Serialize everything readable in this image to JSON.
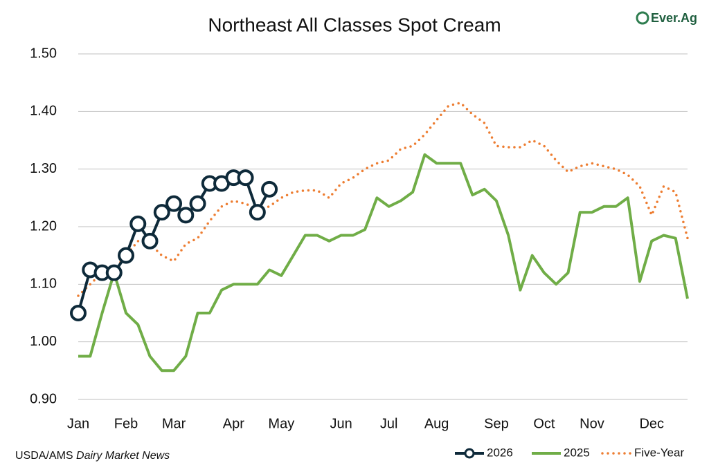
{
  "chart_data": {
    "type": "line",
    "title": "Northeast All Classes Spot Cream",
    "logo": "Ever.Ag",
    "source": {
      "prefix": "USDA/AMS ",
      "italic": "Dairy Market News"
    },
    "categories": [
      "Jan",
      null,
      null,
      null,
      "Feb",
      null,
      null,
      null,
      "Mar",
      null,
      null,
      null,
      null,
      "Apr",
      null,
      null,
      null,
      "May",
      null,
      null,
      null,
      null,
      "Jun",
      null,
      null,
      null,
      "Jul",
      null,
      null,
      null,
      "Aug",
      null,
      null,
      null,
      null,
      "Sep",
      null,
      null,
      null,
      "Oct",
      null,
      null,
      null,
      "Nov",
      null,
      null,
      null,
      null,
      "Dec",
      null,
      null,
      null
    ],
    "ylim": [
      0.9,
      1.5
    ],
    "yticks": [
      {
        "value": 0.9,
        "label": "0.90"
      },
      {
        "value": 1.0,
        "label": "1.00"
      },
      {
        "value": 1.1,
        "label": "1.10"
      },
      {
        "value": 1.2,
        "label": "1.20"
      },
      {
        "value": 1.3,
        "label": "1.30"
      },
      {
        "value": 1.4,
        "label": "1.40"
      },
      {
        "value": 1.5,
        "label": "1.50"
      }
    ],
    "grid": true,
    "legend": "bottom-right",
    "series": [
      {
        "name": "2026",
        "color": "#0e2a3a",
        "style": "solid-markers",
        "values": [
          1.05,
          1.125,
          1.12,
          1.12,
          1.15,
          1.205,
          1.175,
          1.225,
          1.24,
          1.22,
          1.24,
          1.275,
          1.275,
          1.285,
          1.285,
          1.225,
          1.265,
          null,
          null,
          null,
          null,
          null,
          null,
          null,
          null,
          null,
          null,
          null,
          null,
          null,
          null,
          null,
          null,
          null,
          null,
          null,
          null,
          null,
          null,
          null,
          null,
          null,
          null,
          null,
          null,
          null,
          null,
          null,
          null,
          null,
          null,
          null
        ]
      },
      {
        "name": "2025",
        "color": "#70ad47",
        "style": "solid",
        "values": [
          0.975,
          0.975,
          1.05,
          1.12,
          1.05,
          1.03,
          0.975,
          0.95,
          0.95,
          0.975,
          1.05,
          1.05,
          1.09,
          1.1,
          1.1,
          1.1,
          1.125,
          1.115,
          1.15,
          1.185,
          1.185,
          1.175,
          1.185,
          1.185,
          1.195,
          1.25,
          1.235,
          1.245,
          1.26,
          1.325,
          1.31,
          1.31,
          1.31,
          1.255,
          1.265,
          1.245,
          1.185,
          1.09,
          1.15,
          1.12,
          1.1,
          1.12,
          1.225,
          1.225,
          1.235,
          1.235,
          1.25,
          1.105,
          1.175,
          1.185,
          1.18,
          1.075
        ]
      },
      {
        "name": "Five-Year",
        "color": "#ed7d31",
        "style": "dotted",
        "values": [
          1.08,
          1.1,
          1.12,
          1.125,
          1.15,
          1.175,
          1.17,
          1.15,
          1.14,
          1.17,
          1.18,
          1.21,
          1.235,
          1.245,
          1.24,
          1.23,
          1.235,
          1.25,
          1.26,
          1.263,
          1.263,
          1.25,
          1.275,
          1.285,
          1.3,
          1.31,
          1.315,
          1.335,
          1.34,
          1.36,
          1.385,
          1.41,
          1.415,
          1.395,
          1.38,
          1.34,
          1.338,
          1.338,
          1.35,
          1.34,
          1.315,
          1.295,
          1.305,
          1.31,
          1.305,
          1.3,
          1.29,
          1.27,
          1.22,
          1.27,
          1.26,
          1.18
        ]
      }
    ]
  }
}
